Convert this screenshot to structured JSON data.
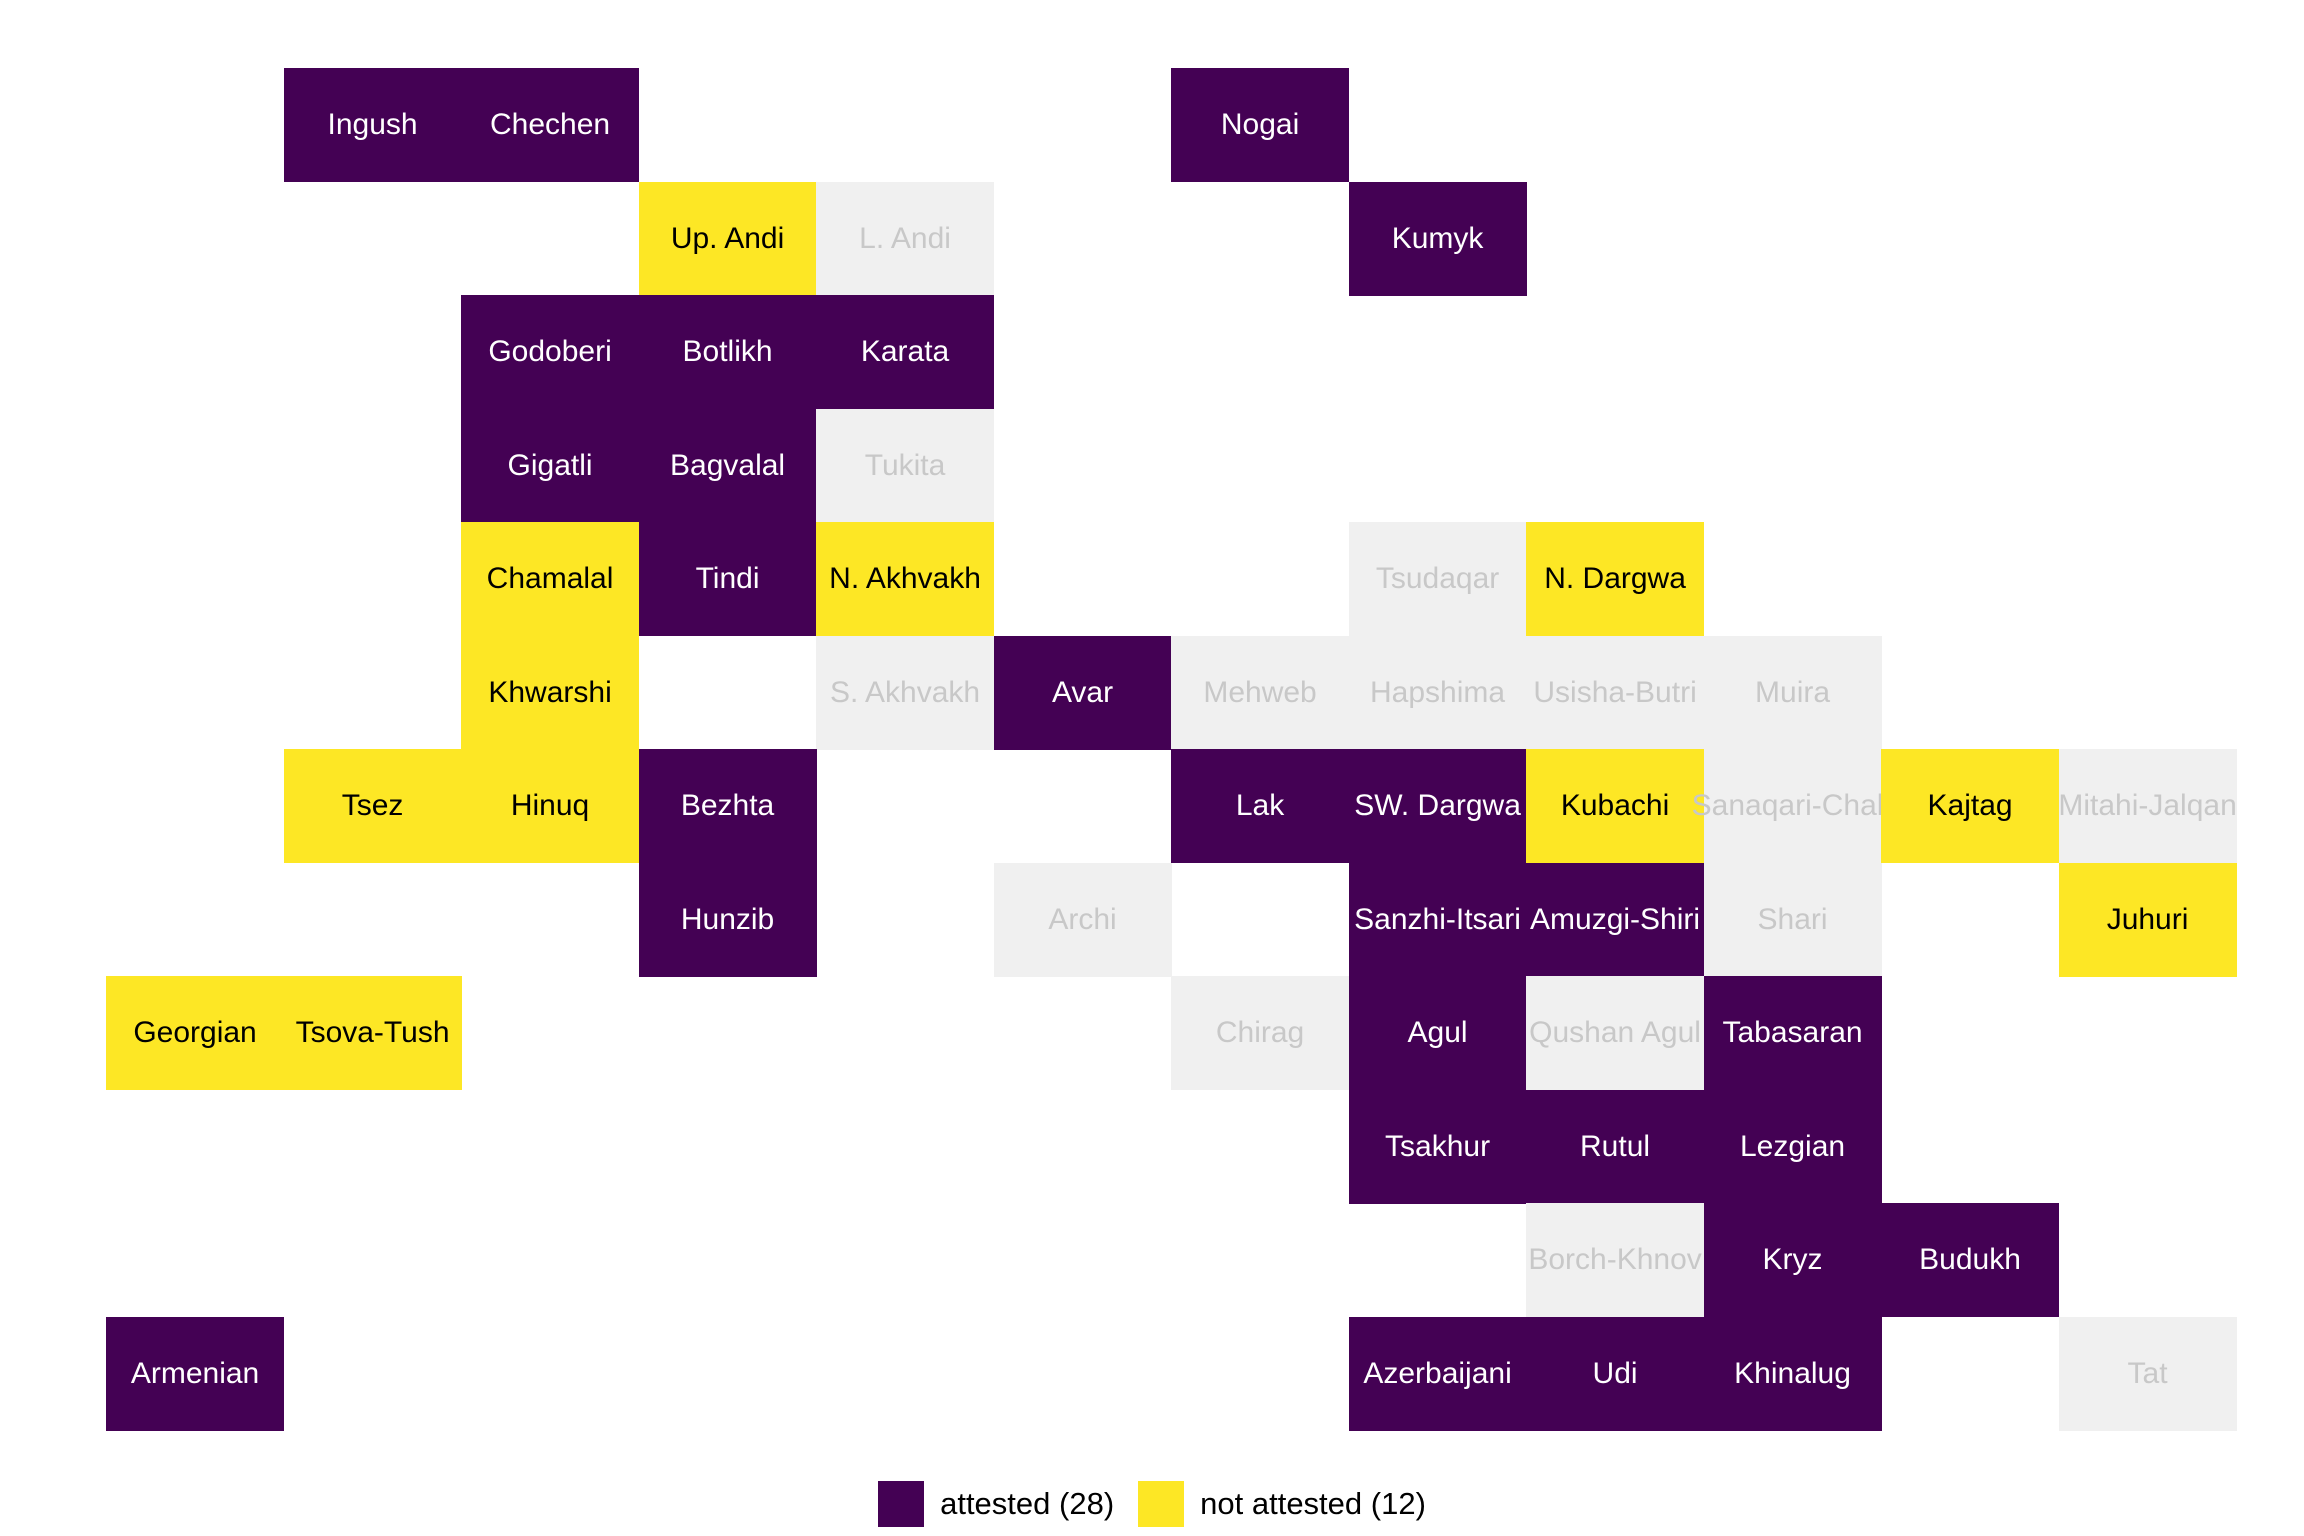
{
  "chart_data": {
    "type": "heatmap",
    "title": "",
    "colors": {
      "attested": "#440154",
      "not_attested": "#FDE725",
      "no_data": "#F0F0F0",
      "text_on_attested": "#FFFFFF",
      "text_on_not_attested": "#000000",
      "text_on_no_data": "#C8C8C8"
    },
    "legend": {
      "placement": "bottom",
      "items": [
        {
          "key": "attested",
          "label": "attested (28)"
        },
        {
          "key": "not_attested",
          "label": "not attested (12)"
        }
      ]
    },
    "cells": [
      {
        "name": "Ingush",
        "col": 2,
        "row": 1,
        "status": "attested"
      },
      {
        "name": "Chechen",
        "col": 3,
        "row": 1,
        "status": "attested"
      },
      {
        "name": "Nogai",
        "col": 7,
        "row": 1,
        "status": "attested"
      },
      {
        "name": "Up. Andi",
        "col": 4,
        "row": 2,
        "status": "not_attested"
      },
      {
        "name": "L. Andi",
        "col": 5,
        "row": 2,
        "status": "no_data"
      },
      {
        "name": "Kumyk",
        "col": 8,
        "row": 2,
        "status": "attested"
      },
      {
        "name": "Godoberi",
        "col": 3,
        "row": 3,
        "status": "attested"
      },
      {
        "name": "Botlikh",
        "col": 4,
        "row": 3,
        "status": "attested"
      },
      {
        "name": "Karata",
        "col": 5,
        "row": 3,
        "status": "attested"
      },
      {
        "name": "Gigatli",
        "col": 3,
        "row": 4,
        "status": "attested"
      },
      {
        "name": "Bagvalal",
        "col": 4,
        "row": 4,
        "status": "attested"
      },
      {
        "name": "Tukita",
        "col": 5,
        "row": 4,
        "status": "no_data"
      },
      {
        "name": "Chamalal",
        "col": 3,
        "row": 5,
        "status": "not_attested"
      },
      {
        "name": "Tindi",
        "col": 4,
        "row": 5,
        "status": "attested"
      },
      {
        "name": "N. Akhvakh",
        "col": 5,
        "row": 5,
        "status": "not_attested"
      },
      {
        "name": "Tsudaqar",
        "col": 8,
        "row": 5,
        "status": "no_data"
      },
      {
        "name": "N. Dargwa",
        "col": 9,
        "row": 5,
        "status": "not_attested"
      },
      {
        "name": "Khwarshi",
        "col": 3,
        "row": 6,
        "status": "not_attested"
      },
      {
        "name": "S. Akhvakh",
        "col": 5,
        "row": 6,
        "status": "no_data"
      },
      {
        "name": "Avar",
        "col": 6,
        "row": 6,
        "status": "attested"
      },
      {
        "name": "Mehweb",
        "col": 7,
        "row": 6,
        "status": "no_data"
      },
      {
        "name": "Hapshima",
        "col": 8,
        "row": 6,
        "status": "no_data"
      },
      {
        "name": "Usisha-Butri",
        "col": 9,
        "row": 6,
        "status": "no_data"
      },
      {
        "name": "Muira",
        "col": 10,
        "row": 6,
        "status": "no_data"
      },
      {
        "name": "Tsez",
        "col": 2,
        "row": 7,
        "status": "not_attested"
      },
      {
        "name": "Hinuq",
        "col": 3,
        "row": 7,
        "status": "not_attested"
      },
      {
        "name": "Bezhta",
        "col": 4,
        "row": 7,
        "status": "attested"
      },
      {
        "name": "Lak",
        "col": 7,
        "row": 7,
        "status": "attested"
      },
      {
        "name": "SW. Dargwa",
        "col": 8,
        "row": 7,
        "status": "attested"
      },
      {
        "name": "Kubachi",
        "col": 9,
        "row": 7,
        "status": "not_attested"
      },
      {
        "name": "Sanaqari-Chah",
        "col": 10,
        "row": 7,
        "status": "no_data"
      },
      {
        "name": "Kajtag",
        "col": 11,
        "row": 7,
        "status": "not_attested"
      },
      {
        "name": "Mitahi-Jalqan",
        "col": 12,
        "row": 7,
        "status": "no_data"
      },
      {
        "name": "Hunzib",
        "col": 4,
        "row": 8,
        "status": "attested"
      },
      {
        "name": "Archi",
        "col": 6,
        "row": 8,
        "status": "no_data"
      },
      {
        "name": "Sanzhi-Itsari",
        "col": 8,
        "row": 8,
        "status": "attested"
      },
      {
        "name": "Amuzgi-Shiri",
        "col": 9,
        "row": 8,
        "status": "attested"
      },
      {
        "name": "Shari",
        "col": 10,
        "row": 8,
        "status": "no_data"
      },
      {
        "name": "Juhuri",
        "col": 12,
        "row": 8,
        "status": "not_attested"
      },
      {
        "name": "Georgian",
        "col": 1,
        "row": 9,
        "status": "not_attested"
      },
      {
        "name": "Tsova-Tush",
        "col": 2,
        "row": 9,
        "status": "not_attested"
      },
      {
        "name": "Chirag",
        "col": 7,
        "row": 9,
        "status": "no_data"
      },
      {
        "name": "Agul",
        "col": 8,
        "row": 9,
        "status": "attested"
      },
      {
        "name": "Qushan Agul",
        "col": 9,
        "row": 9,
        "status": "no_data"
      },
      {
        "name": "Tabasaran",
        "col": 10,
        "row": 9,
        "status": "attested"
      },
      {
        "name": "Tsakhur",
        "col": 8,
        "row": 10,
        "status": "attested"
      },
      {
        "name": "Rutul",
        "col": 9,
        "row": 10,
        "status": "attested"
      },
      {
        "name": "Lezgian",
        "col": 10,
        "row": 10,
        "status": "attested"
      },
      {
        "name": "Borch-Khnov",
        "col": 9,
        "row": 11,
        "status": "no_data"
      },
      {
        "name": "Kryz",
        "col": 10,
        "row": 11,
        "status": "attested"
      },
      {
        "name": "Budukh",
        "col": 11,
        "row": 11,
        "status": "attested"
      },
      {
        "name": "Armenian",
        "col": 1,
        "row": 12,
        "status": "attested"
      },
      {
        "name": "Azerbaijani",
        "col": 8,
        "row": 12,
        "status": "attested"
      },
      {
        "name": "Udi",
        "col": 9,
        "row": 12,
        "status": "attested"
      },
      {
        "name": "Khinalug",
        "col": 10,
        "row": 12,
        "status": "attested"
      },
      {
        "name": "Tat",
        "col": 12,
        "row": 12,
        "status": "no_data"
      }
    ]
  }
}
